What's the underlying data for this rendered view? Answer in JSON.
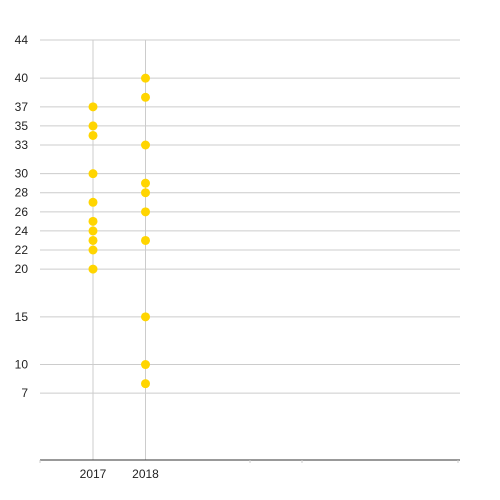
{
  "chart_data": {
    "type": "scatter",
    "title": "",
    "xlabel": "",
    "ylabel": "",
    "categories": [
      "2017",
      "2018"
    ],
    "series": [
      {
        "values": [
          [
            37,
            35,
            34,
            30,
            27,
            25,
            24,
            23,
            22,
            20
          ],
          [
            40,
            38,
            33,
            29,
            28,
            26,
            23,
            15,
            10,
            8
          ]
        ]
      }
    ],
    "y_ticks": [
      7,
      10,
      15,
      20,
      22,
      24,
      26,
      28,
      30,
      33,
      35,
      37,
      40,
      44
    ],
    "ylim": [
      0,
      44
    ],
    "grid": true,
    "legend": "none",
    "colors": {
      "points": "#ffd500",
      "gridlines": "#cccccc",
      "axis": "#333333",
      "text": "#222222"
    }
  }
}
